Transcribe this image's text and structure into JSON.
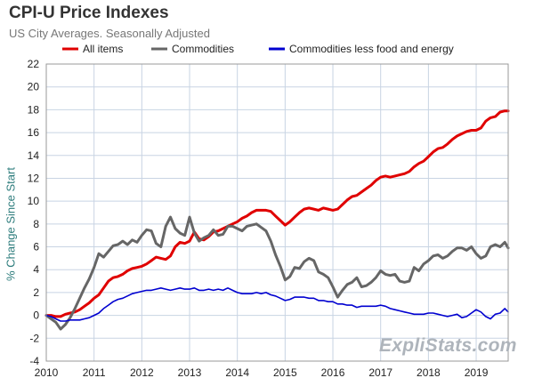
{
  "chart_data": {
    "type": "line",
    "title": "CPI-U Price Indexes",
    "subtitle": "US City Averages. Seasonally Adjusted",
    "xlabel": "",
    "ylabel": "% Change Since Start",
    "xlim": [
      2010,
      2019.67
    ],
    "ylim": [
      -4,
      22
    ],
    "x_ticks": [
      2010,
      2011,
      2012,
      2013,
      2014,
      2015,
      2016,
      2017,
      2018,
      2019
    ],
    "y_ticks": [
      -4,
      -2,
      0,
      2,
      4,
      6,
      8,
      10,
      12,
      14,
      16,
      18,
      20,
      22
    ],
    "grid": true,
    "legend_position": "top",
    "series": [
      {
        "name": "All items",
        "color": "#e00000",
        "points": [
          [
            2010,
            0
          ],
          [
            2010.1,
            0
          ],
          [
            2010.2,
            -0.1
          ],
          [
            2010.3,
            -0.1
          ],
          [
            2010.4,
            0.1
          ],
          [
            2010.5,
            0.2
          ],
          [
            2010.6,
            0.3
          ],
          [
            2010.7,
            0.5
          ],
          [
            2010.8,
            0.8
          ],
          [
            2010.9,
            1.1
          ],
          [
            2011,
            1.5
          ],
          [
            2011.1,
            1.8
          ],
          [
            2011.2,
            2.4
          ],
          [
            2011.3,
            3.0
          ],
          [
            2011.4,
            3.3
          ],
          [
            2011.5,
            3.4
          ],
          [
            2011.6,
            3.6
          ],
          [
            2011.7,
            3.9
          ],
          [
            2011.8,
            4.1
          ],
          [
            2011.9,
            4.2
          ],
          [
            2012,
            4.3
          ],
          [
            2012.1,
            4.5
          ],
          [
            2012.2,
            4.8
          ],
          [
            2012.3,
            5.1
          ],
          [
            2012.4,
            5.0
          ],
          [
            2012.5,
            4.9
          ],
          [
            2012.6,
            5.2
          ],
          [
            2012.7,
            6.0
          ],
          [
            2012.8,
            6.4
          ],
          [
            2012.9,
            6.3
          ],
          [
            2013,
            6.5
          ],
          [
            2013.1,
            7.3
          ],
          [
            2013.2,
            6.7
          ],
          [
            2013.3,
            6.6
          ],
          [
            2013.4,
            6.9
          ],
          [
            2013.5,
            7.3
          ],
          [
            2013.6,
            7.4
          ],
          [
            2013.7,
            7.6
          ],
          [
            2013.8,
            7.8
          ],
          [
            2013.9,
            8.0
          ],
          [
            2014,
            8.2
          ],
          [
            2014.1,
            8.5
          ],
          [
            2014.2,
            8.7
          ],
          [
            2014.3,
            9.0
          ],
          [
            2014.4,
            9.2
          ],
          [
            2014.5,
            9.2
          ],
          [
            2014.6,
            9.2
          ],
          [
            2014.7,
            9.1
          ],
          [
            2014.8,
            8.7
          ],
          [
            2014.9,
            8.3
          ],
          [
            2015,
            7.9
          ],
          [
            2015.1,
            8.2
          ],
          [
            2015.2,
            8.6
          ],
          [
            2015.3,
            9.0
          ],
          [
            2015.4,
            9.3
          ],
          [
            2015.5,
            9.4
          ],
          [
            2015.6,
            9.3
          ],
          [
            2015.7,
            9.2
          ],
          [
            2015.8,
            9.4
          ],
          [
            2015.9,
            9.3
          ],
          [
            2016,
            9.2
          ],
          [
            2016.1,
            9.3
          ],
          [
            2016.2,
            9.7
          ],
          [
            2016.3,
            10.1
          ],
          [
            2016.4,
            10.4
          ],
          [
            2016.5,
            10.5
          ],
          [
            2016.6,
            10.8
          ],
          [
            2016.7,
            11.1
          ],
          [
            2016.8,
            11.4
          ],
          [
            2016.9,
            11.8
          ],
          [
            2017,
            12.1
          ],
          [
            2017.1,
            12.2
          ],
          [
            2017.2,
            12.1
          ],
          [
            2017.3,
            12.2
          ],
          [
            2017.4,
            12.3
          ],
          [
            2017.5,
            12.4
          ],
          [
            2017.6,
            12.6
          ],
          [
            2017.7,
            13.0
          ],
          [
            2017.8,
            13.3
          ],
          [
            2017.9,
            13.5
          ],
          [
            2018,
            13.9
          ],
          [
            2018.1,
            14.3
          ],
          [
            2018.2,
            14.6
          ],
          [
            2018.3,
            14.7
          ],
          [
            2018.4,
            15.0
          ],
          [
            2018.5,
            15.4
          ],
          [
            2018.6,
            15.7
          ],
          [
            2018.7,
            15.9
          ],
          [
            2018.8,
            16.1
          ],
          [
            2018.9,
            16.2
          ],
          [
            2019,
            16.2
          ],
          [
            2019.1,
            16.4
          ],
          [
            2019.2,
            17.0
          ],
          [
            2019.3,
            17.3
          ],
          [
            2019.4,
            17.4
          ],
          [
            2019.5,
            17.8
          ],
          [
            2019.6,
            17.9
          ],
          [
            2019.67,
            17.9
          ]
        ]
      },
      {
        "name": "Commodities",
        "color": "#666666",
        "points": [
          [
            2010,
            0
          ],
          [
            2010.1,
            -0.3
          ],
          [
            2010.2,
            -0.6
          ],
          [
            2010.3,
            -1.2
          ],
          [
            2010.4,
            -0.8
          ],
          [
            2010.5,
            -0.2
          ],
          [
            2010.6,
            0.6
          ],
          [
            2010.7,
            1.5
          ],
          [
            2010.8,
            2.4
          ],
          [
            2010.9,
            3.2
          ],
          [
            2011,
            4.2
          ],
          [
            2011.1,
            5.4
          ],
          [
            2011.2,
            5.1
          ],
          [
            2011.3,
            5.6
          ],
          [
            2011.4,
            6.1
          ],
          [
            2011.5,
            6.2
          ],
          [
            2011.6,
            6.5
          ],
          [
            2011.7,
            6.2
          ],
          [
            2011.8,
            6.6
          ],
          [
            2011.9,
            6.4
          ],
          [
            2012,
            7.0
          ],
          [
            2012.1,
            7.5
          ],
          [
            2012.2,
            7.4
          ],
          [
            2012.3,
            6.3
          ],
          [
            2012.4,
            6.0
          ],
          [
            2012.5,
            7.8
          ],
          [
            2012.6,
            8.6
          ],
          [
            2012.7,
            7.6
          ],
          [
            2012.8,
            7.2
          ],
          [
            2012.9,
            7.0
          ],
          [
            2013,
            8.6
          ],
          [
            2013.1,
            7.2
          ],
          [
            2013.2,
            6.5
          ],
          [
            2013.3,
            6.8
          ],
          [
            2013.4,
            7.0
          ],
          [
            2013.5,
            7.5
          ],
          [
            2013.6,
            7.0
          ],
          [
            2013.7,
            7.1
          ],
          [
            2013.8,
            7.8
          ],
          [
            2013.9,
            7.8
          ],
          [
            2014,
            7.6
          ],
          [
            2014.1,
            7.4
          ],
          [
            2014.2,
            7.8
          ],
          [
            2014.3,
            7.9
          ],
          [
            2014.4,
            8.0
          ],
          [
            2014.5,
            7.7
          ],
          [
            2014.6,
            7.4
          ],
          [
            2014.7,
            6.5
          ],
          [
            2014.8,
            5.3
          ],
          [
            2014.9,
            4.3
          ],
          [
            2015,
            3.1
          ],
          [
            2015.1,
            3.4
          ],
          [
            2015.2,
            4.2
          ],
          [
            2015.3,
            4.1
          ],
          [
            2015.4,
            4.7
          ],
          [
            2015.5,
            5.0
          ],
          [
            2015.6,
            4.8
          ],
          [
            2015.7,
            3.8
          ],
          [
            2015.8,
            3.6
          ],
          [
            2015.9,
            3.3
          ],
          [
            2016,
            2.5
          ],
          [
            2016.1,
            1.6
          ],
          [
            2016.2,
            2.2
          ],
          [
            2016.3,
            2.7
          ],
          [
            2016.4,
            2.9
          ],
          [
            2016.5,
            3.3
          ],
          [
            2016.6,
            2.5
          ],
          [
            2016.7,
            2.6
          ],
          [
            2016.8,
            2.9
          ],
          [
            2016.9,
            3.3
          ],
          [
            2017,
            3.9
          ],
          [
            2017.1,
            3.6
          ],
          [
            2017.2,
            3.5
          ],
          [
            2017.3,
            3.6
          ],
          [
            2017.4,
            3.0
          ],
          [
            2017.5,
            2.9
          ],
          [
            2017.6,
            3.0
          ],
          [
            2017.7,
            4.2
          ],
          [
            2017.8,
            3.9
          ],
          [
            2017.9,
            4.5
          ],
          [
            2018,
            4.8
          ],
          [
            2018.1,
            5.2
          ],
          [
            2018.2,
            5.3
          ],
          [
            2018.3,
            5.0
          ],
          [
            2018.4,
            5.2
          ],
          [
            2018.5,
            5.6
          ],
          [
            2018.6,
            5.9
          ],
          [
            2018.7,
            5.9
          ],
          [
            2018.8,
            5.7
          ],
          [
            2018.9,
            6.0
          ],
          [
            2019,
            5.4
          ],
          [
            2019.1,
            5.0
          ],
          [
            2019.2,
            5.2
          ],
          [
            2019.3,
            6.0
          ],
          [
            2019.4,
            6.2
          ],
          [
            2019.5,
            6.0
          ],
          [
            2019.6,
            6.4
          ],
          [
            2019.67,
            5.9
          ]
        ]
      },
      {
        "name": "Commodities less food and energy",
        "color": "#0000d0",
        "points": [
          [
            2010,
            0
          ],
          [
            2010.1,
            -0.1
          ],
          [
            2010.2,
            -0.3
          ],
          [
            2010.3,
            -0.5
          ],
          [
            2010.4,
            -0.5
          ],
          [
            2010.5,
            -0.4
          ],
          [
            2010.6,
            -0.4
          ],
          [
            2010.7,
            -0.4
          ],
          [
            2010.8,
            -0.3
          ],
          [
            2010.9,
            -0.2
          ],
          [
            2011,
            0.0
          ],
          [
            2011.1,
            0.2
          ],
          [
            2011.2,
            0.6
          ],
          [
            2011.3,
            0.9
          ],
          [
            2011.4,
            1.2
          ],
          [
            2011.5,
            1.4
          ],
          [
            2011.6,
            1.5
          ],
          [
            2011.7,
            1.7
          ],
          [
            2011.8,
            1.9
          ],
          [
            2011.9,
            2.0
          ],
          [
            2012,
            2.1
          ],
          [
            2012.1,
            2.2
          ],
          [
            2012.2,
            2.2
          ],
          [
            2012.3,
            2.3
          ],
          [
            2012.4,
            2.4
          ],
          [
            2012.5,
            2.3
          ],
          [
            2012.6,
            2.2
          ],
          [
            2012.7,
            2.3
          ],
          [
            2012.8,
            2.4
          ],
          [
            2012.9,
            2.3
          ],
          [
            2013,
            2.3
          ],
          [
            2013.1,
            2.4
          ],
          [
            2013.2,
            2.2
          ],
          [
            2013.3,
            2.2
          ],
          [
            2013.4,
            2.3
          ],
          [
            2013.5,
            2.2
          ],
          [
            2013.6,
            2.3
          ],
          [
            2013.7,
            2.2
          ],
          [
            2013.8,
            2.4
          ],
          [
            2013.9,
            2.2
          ],
          [
            2014,
            2.0
          ],
          [
            2014.1,
            1.9
          ],
          [
            2014.2,
            1.9
          ],
          [
            2014.3,
            1.9
          ],
          [
            2014.4,
            2.0
          ],
          [
            2014.5,
            1.9
          ],
          [
            2014.6,
            2.0
          ],
          [
            2014.7,
            1.8
          ],
          [
            2014.8,
            1.7
          ],
          [
            2014.9,
            1.5
          ],
          [
            2015,
            1.3
          ],
          [
            2015.1,
            1.4
          ],
          [
            2015.2,
            1.6
          ],
          [
            2015.3,
            1.6
          ],
          [
            2015.4,
            1.6
          ],
          [
            2015.5,
            1.5
          ],
          [
            2015.6,
            1.5
          ],
          [
            2015.7,
            1.3
          ],
          [
            2015.8,
            1.3
          ],
          [
            2015.9,
            1.2
          ],
          [
            2016,
            1.2
          ],
          [
            2016.1,
            1.0
          ],
          [
            2016.2,
            1.0
          ],
          [
            2016.3,
            0.9
          ],
          [
            2016.4,
            0.9
          ],
          [
            2016.5,
            0.7
          ],
          [
            2016.6,
            0.8
          ],
          [
            2016.7,
            0.8
          ],
          [
            2016.8,
            0.8
          ],
          [
            2016.9,
            0.8
          ],
          [
            2017,
            0.9
          ],
          [
            2017.1,
            0.8
          ],
          [
            2017.2,
            0.6
          ],
          [
            2017.3,
            0.5
          ],
          [
            2017.4,
            0.4
          ],
          [
            2017.5,
            0.3
          ],
          [
            2017.6,
            0.2
          ],
          [
            2017.7,
            0.1
          ],
          [
            2017.8,
            0.1
          ],
          [
            2017.9,
            0.1
          ],
          [
            2018,
            0.2
          ],
          [
            2018.1,
            0.2
          ],
          [
            2018.2,
            0.1
          ],
          [
            2018.3,
            0.0
          ],
          [
            2018.4,
            -0.1
          ],
          [
            2018.5,
            0.0
          ],
          [
            2018.6,
            0.1
          ],
          [
            2018.7,
            -0.2
          ],
          [
            2018.8,
            -0.1
          ],
          [
            2018.9,
            0.2
          ],
          [
            2019,
            0.5
          ],
          [
            2019.1,
            0.3
          ],
          [
            2019.2,
            -0.1
          ],
          [
            2019.3,
            -0.3
          ],
          [
            2019.4,
            0.1
          ],
          [
            2019.5,
            0.2
          ],
          [
            2019.6,
            0.6
          ],
          [
            2019.67,
            0.3
          ]
        ]
      }
    ]
  },
  "watermark": "ExpliStats.com"
}
